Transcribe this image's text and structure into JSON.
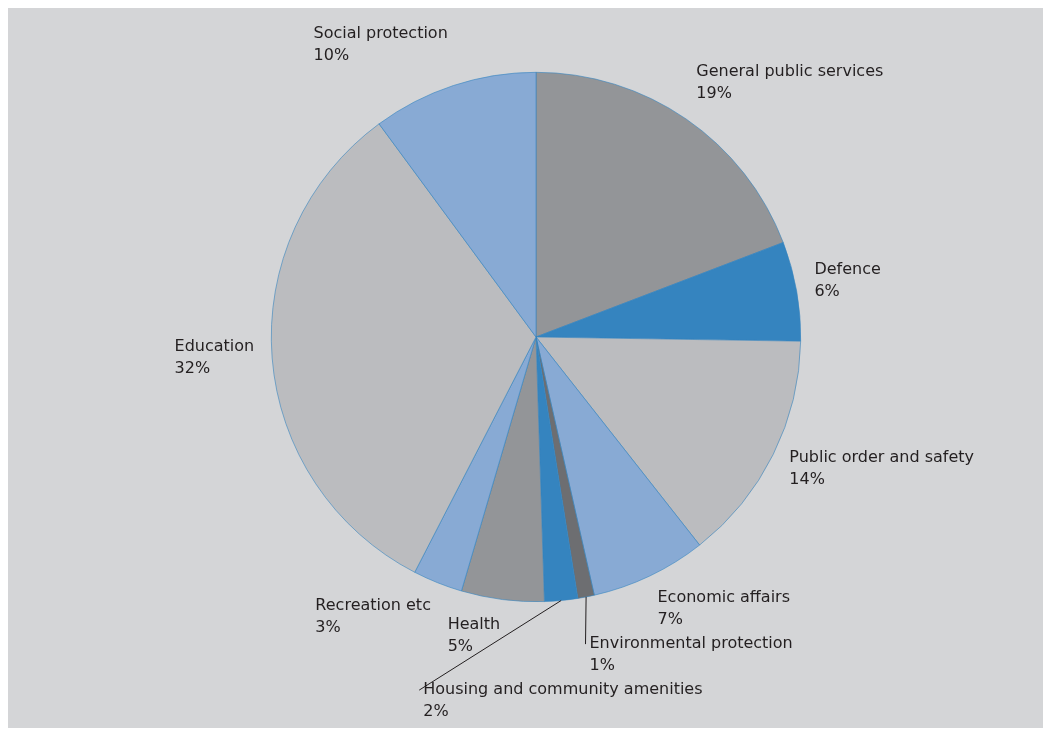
{
  "chart_data": {
    "type": "pie",
    "categories": [
      "General public services",
      "Defence",
      "Public order and safety",
      "Economic affairs",
      "Environmental protection",
      "Housing and community amenities",
      "Health",
      "Recreation etc",
      "Education",
      "Social protection"
    ],
    "values": [
      19,
      6,
      14,
      7,
      1,
      2,
      5,
      3,
      32,
      10
    ],
    "value_labels": [
      "19%",
      "6%",
      "14%",
      "7%",
      "1%",
      "2%",
      "5%",
      "3%",
      "32%",
      "10%"
    ],
    "colors": [
      "#939598",
      "#3584bf",
      "#bbbcbf",
      "#88aad4",
      "#6d6e71",
      "#3584bf",
      "#939598",
      "#88aad4",
      "#bbbcbf",
      "#88aad4"
    ],
    "legend": false
  }
}
